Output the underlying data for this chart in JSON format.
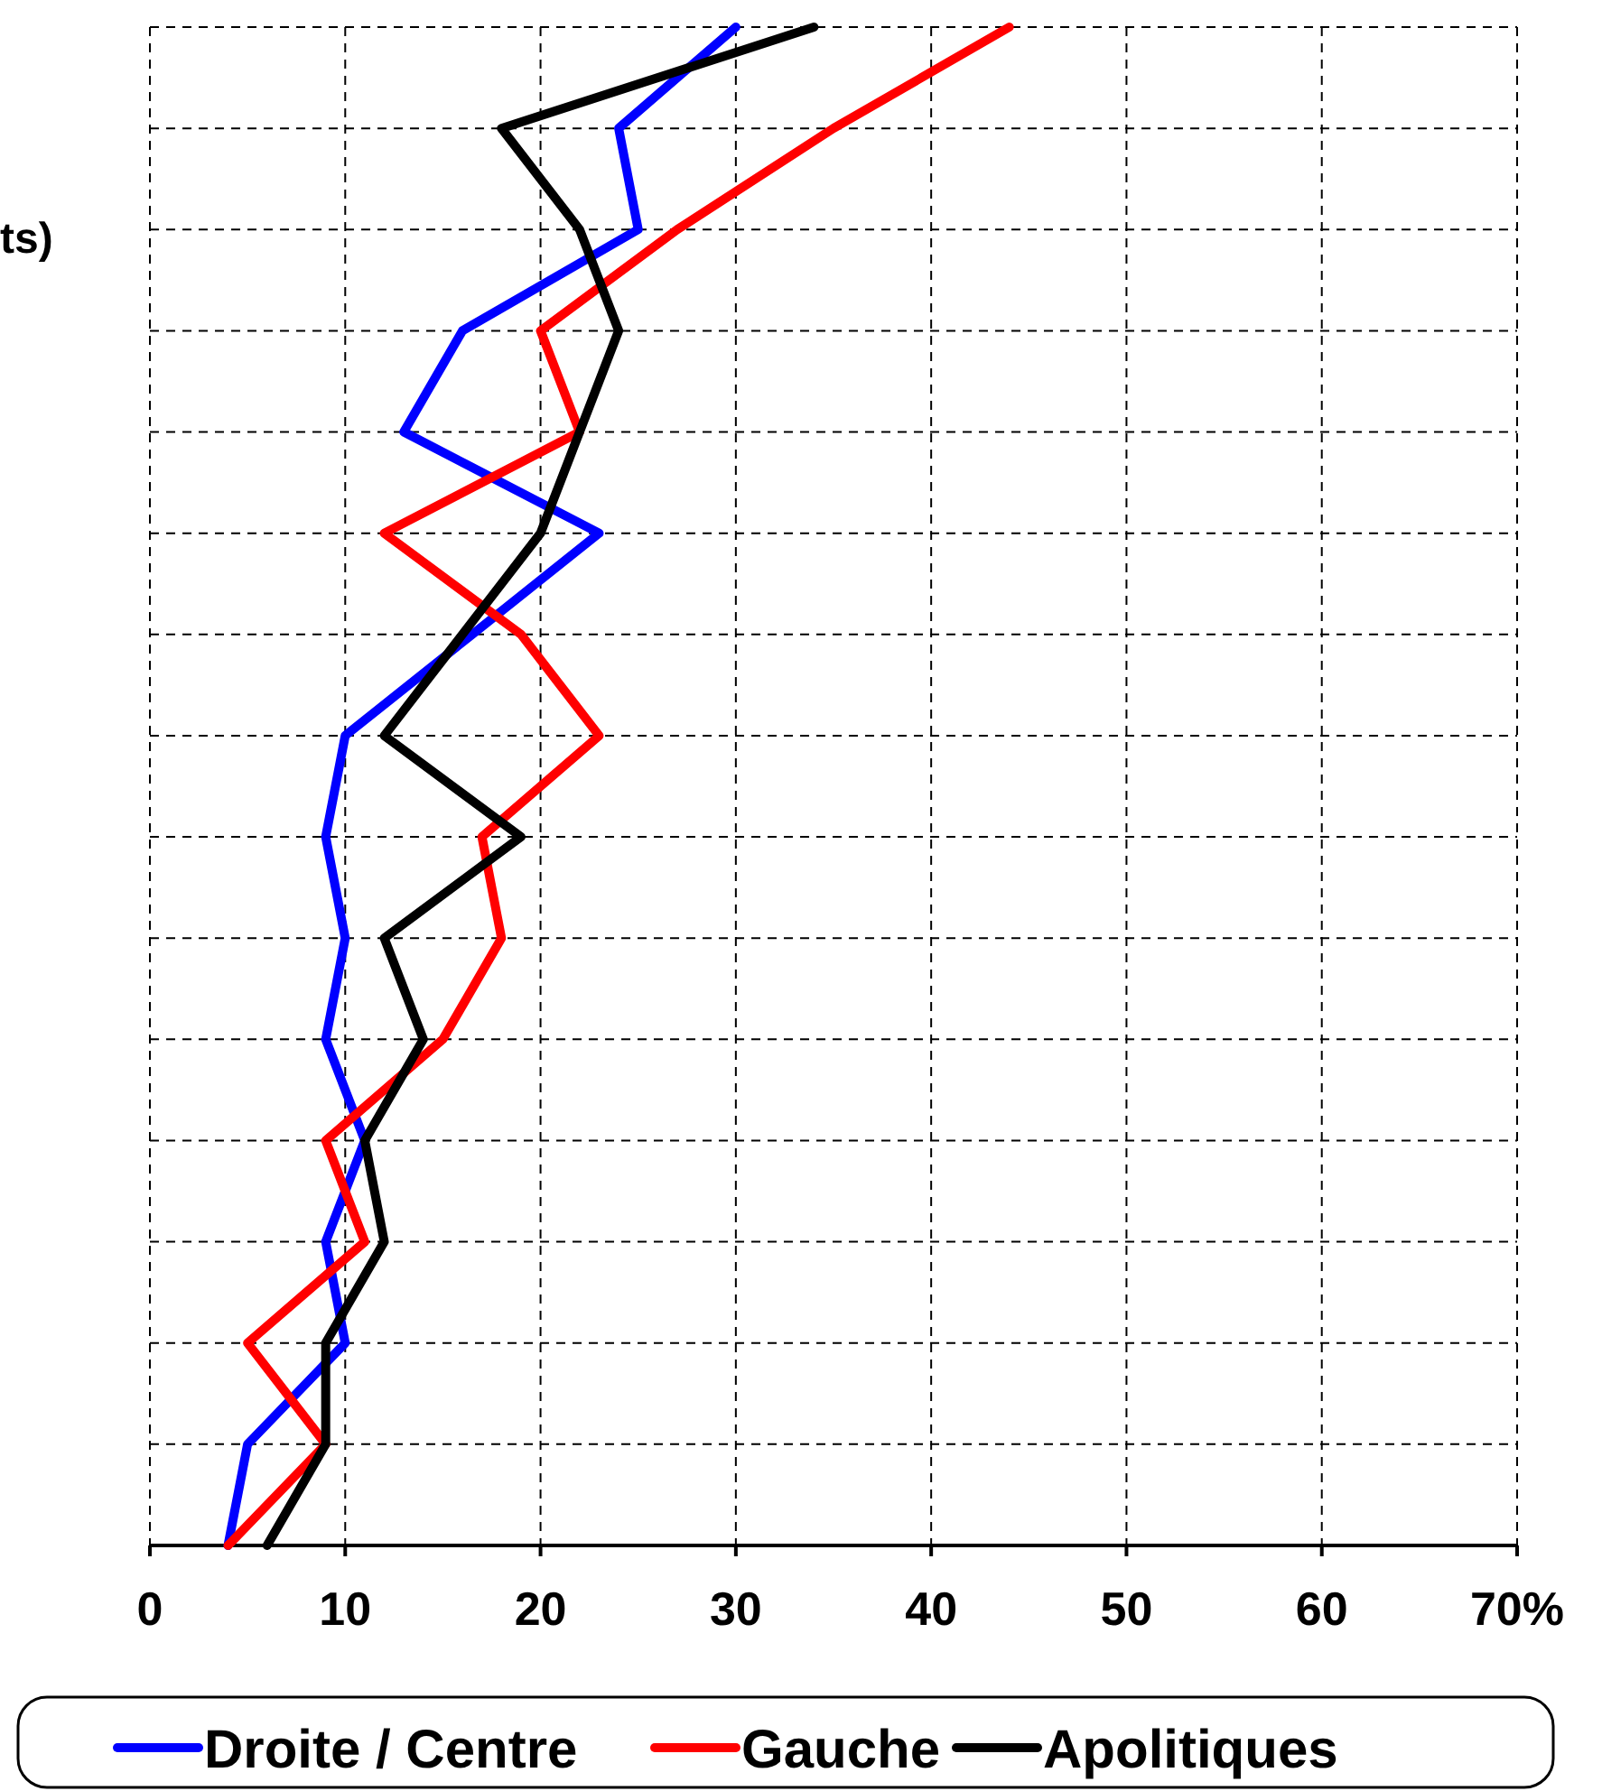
{
  "chart_data": {
    "type": "line",
    "orientation": "horizontal",
    "categories": [
      null,
      null,
      null,
      null,
      null,
      null,
      null,
      null,
      null,
      null,
      null,
      null,
      null,
      null,
      null,
      null
    ],
    "xlim": [
      0,
      70
    ],
    "xticks": [
      0,
      10,
      20,
      30,
      40,
      50,
      60,
      {
        "value": 70,
        "label": "70%"
      }
    ],
    "grid": true,
    "legend": "bottom",
    "marker": "none",
    "line_style": "solid",
    "tick_labels": "x",
    "annotations": [
      "ts)"
    ],
    "series": [
      {
        "name": "Droite / Centre",
        "color": "#0000ff",
        "values": [
          30,
          24,
          25,
          16,
          13,
          23,
          16.5,
          10,
          9,
          10,
          9,
          11,
          9,
          10,
          5,
          4
        ]
      },
      {
        "name": "Gauche",
        "color": "#ff0000",
        "values": [
          44,
          35,
          27,
          20,
          22,
          12,
          19,
          23,
          17,
          18,
          15,
          9,
          11,
          5,
          9,
          4
        ]
      },
      {
        "name": "Apolitiques",
        "color": "#000000",
        "values": [
          34,
          18,
          22,
          24,
          22,
          20,
          16,
          12,
          19,
          12,
          14,
          11,
          12,
          9,
          9,
          6
        ]
      }
    ]
  }
}
